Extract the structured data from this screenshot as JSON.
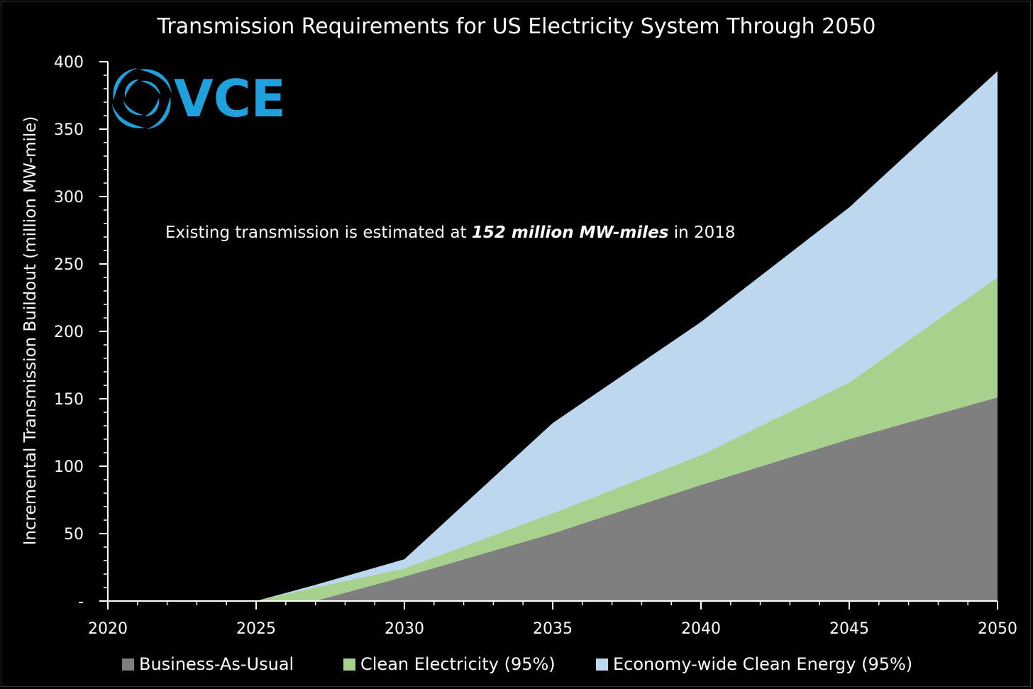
{
  "chart_data": {
    "type": "area",
    "stacked": false,
    "title": "Transmission Requirements for US Electricity System Through 2050",
    "xlabel": "",
    "ylabel": "Incremental Transmission Buildout (million MW-mile)",
    "x": [
      2020,
      2025,
      2026,
      2027,
      2030,
      2035,
      2040,
      2045,
      2050
    ],
    "xticks": [
      "2020",
      "2025",
      "2030",
      "2035",
      "2040",
      "2045",
      "2050"
    ],
    "yticks": [
      "-",
      "50",
      "100",
      "150",
      "200",
      "250",
      "300",
      "350",
      "400"
    ],
    "xlim": [
      2020,
      2050
    ],
    "ylim": [
      0,
      400
    ],
    "series": [
      {
        "name": "Economy-wide Clean Energy (95%)",
        "color": "#bdd7ee",
        "values": [
          0,
          0,
          6,
          12,
          31,
          132,
          207,
          292,
          393
        ]
      },
      {
        "name": "Clean Electricity (95%)",
        "color": "#a9d18e",
        "values": [
          0,
          0,
          5,
          10,
          24,
          65,
          108,
          162,
          240
        ]
      },
      {
        "name": "Business-As-Usual",
        "color": "#7f7f7f",
        "values": [
          0,
          0,
          0,
          0,
          18,
          50,
          86,
          120,
          151
        ]
      }
    ],
    "legend_order": [
      "Business-As-Usual",
      "Clean Electricity (95%)",
      "Economy-wide Clean Energy (95%)"
    ],
    "legend_position": "bottom",
    "annotation": {
      "prefix": "Existing transmission is estimated at ",
      "bold": "152 million MW-miles",
      "suffix": " in 2018"
    }
  },
  "logo": {
    "text": "VCE",
    "color": "#1ea1dc"
  }
}
